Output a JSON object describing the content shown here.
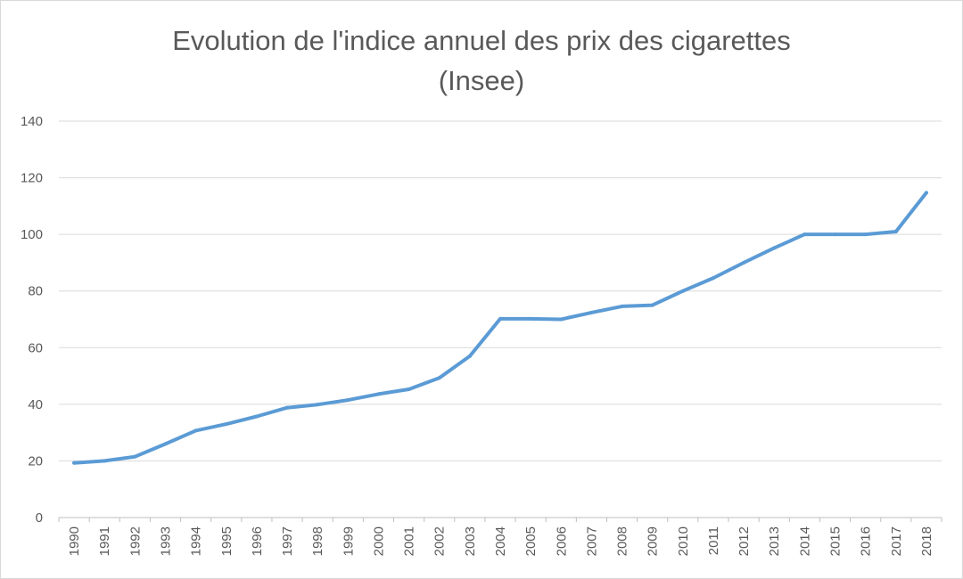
{
  "chart_data": {
    "type": "line",
    "title_lines": [
      "Evolution de l'indice annuel des prix des cigarettes",
      "(Insee)"
    ],
    "xlabel": "",
    "ylabel": "",
    "ylim": [
      0,
      140
    ],
    "yticks": [
      0,
      20,
      40,
      60,
      80,
      100,
      120,
      140
    ],
    "grid": true,
    "legend": "none",
    "categories": [
      "1990",
      "1991",
      "1992",
      "1993",
      "1994",
      "1995",
      "1996",
      "1997",
      "1998",
      "1999",
      "2000",
      "2001",
      "2002",
      "2003",
      "2004",
      "2005",
      "2006",
      "2007",
      "2008",
      "2009",
      "2010",
      "2011",
      "2012",
      "2013",
      "2014",
      "2015",
      "2016",
      "2017",
      "2018"
    ],
    "series": [
      {
        "color": "#5b9bd5",
        "values": [
          19.3,
          20,
          21.5,
          26,
          30.7,
          33,
          35.7,
          38.8,
          39.9,
          41.5,
          43.6,
          45.3,
          49.3,
          57,
          70.2,
          70.2,
          70,
          72.4,
          74.6,
          75,
          80,
          84.6,
          90,
          95.2,
          100,
          100,
          100,
          101,
          114.7
        ]
      }
    ]
  }
}
